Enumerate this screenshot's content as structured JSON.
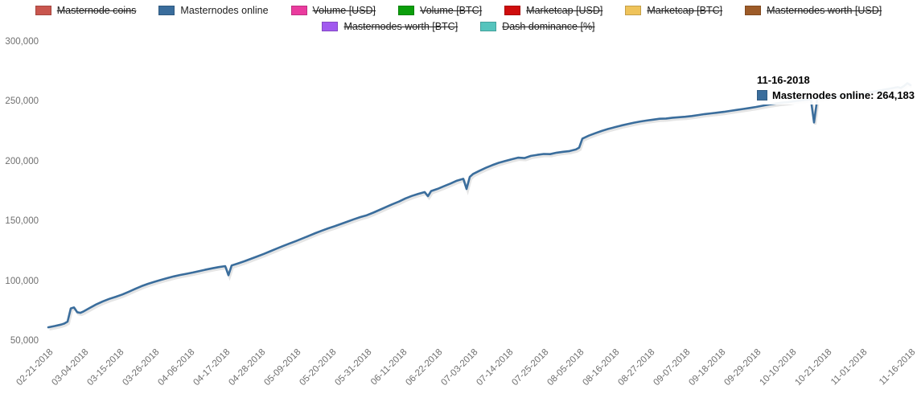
{
  "tooltip": {
    "date": "11-16-2018",
    "series": "Masternodes online",
    "value": "264,183",
    "text": "Masternodes online: 264,183",
    "color": "#3a6d9c"
  },
  "legend": {
    "rows": [
      [
        {
          "label": "Masternode coins",
          "color": "#c9564e",
          "disabled": true
        },
        {
          "label": "Masternodes online",
          "color": "#3a6d9c",
          "disabled": false
        },
        {
          "label": "Volume [USD]",
          "color": "#ea3b9e",
          "disabled": true
        },
        {
          "label": "Volume [BTC]",
          "color": "#0b9e0b",
          "disabled": true
        },
        {
          "label": "Marketcap [USD]",
          "color": "#cf0d0d",
          "disabled": true
        },
        {
          "label": "Marketcap [BTC]",
          "color": "#efc35a",
          "disabled": true
        },
        {
          "label": "Masternodes worth [USD]",
          "color": "#9d5b28",
          "disabled": true
        }
      ],
      [
        {
          "label": "Masternodes worth [BTC]",
          "color": "#a159ef",
          "disabled": true
        },
        {
          "label": "Dash dominance [%]",
          "color": "#55c4bd",
          "disabled": true
        }
      ]
    ]
  },
  "chart_data": {
    "type": "line",
    "title": "",
    "xlabel": "",
    "ylabel": "",
    "grid": false,
    "legend_position": "top-center",
    "ylim": [
      50000,
      300000
    ],
    "y_ticks": [
      {
        "value": 50000,
        "label": "50,000"
      },
      {
        "value": 100000,
        "label": "100,000"
      },
      {
        "value": 150000,
        "label": "150,000"
      },
      {
        "value": 200000,
        "label": "200,000"
      },
      {
        "value": 250000,
        "label": "250,000"
      },
      {
        "value": 300000,
        "label": "300,000"
      }
    ],
    "x_ticks": [
      "02-21-2018",
      "03-04-2018",
      "03-15-2018",
      "03-26-2018",
      "04-06-2018",
      "04-17-2018",
      "04-28-2018",
      "05-09-2018",
      "05-20-2018",
      "05-31-2018",
      "06-11-2018",
      "06-22-2018",
      "07-03-2018",
      "07-14-2018",
      "07-25-2018",
      "08-05-2018",
      "08-16-2018",
      "08-27-2018",
      "09-07-2018",
      "09-18-2018",
      "09-29-2018",
      "10-10-2018",
      "10-21-2018",
      "11-01-2018",
      "11-16-2018"
    ],
    "series": [
      {
        "name": "Masternodes online",
        "color": "#3a6d9c",
        "points": [
          [
            "02-21-2018",
            62000
          ],
          [
            "02-23-2018",
            63100
          ],
          [
            "02-25-2018",
            64300
          ],
          [
            "02-26-2018",
            65200
          ],
          [
            "02-27-2018",
            66800
          ],
          [
            "02-28-2018",
            77800
          ],
          [
            "03-01-2018",
            78600
          ],
          [
            "03-02-2018",
            74600
          ],
          [
            "03-03-2018",
            74100
          ],
          [
            "03-04-2018",
            75300
          ],
          [
            "03-06-2018",
            78300
          ],
          [
            "03-08-2018",
            81300
          ],
          [
            "03-10-2018",
            83700
          ],
          [
            "03-12-2018",
            85800
          ],
          [
            "03-14-2018",
            87500
          ],
          [
            "03-16-2018",
            89400
          ],
          [
            "03-18-2018",
            91700
          ],
          [
            "03-20-2018",
            94100
          ],
          [
            "03-22-2018",
            96400
          ],
          [
            "03-24-2018",
            98300
          ],
          [
            "03-26-2018",
            100000
          ],
          [
            "03-28-2018",
            101600
          ],
          [
            "03-30-2018",
            103100
          ],
          [
            "04-01-2018",
            104500
          ],
          [
            "04-03-2018",
            105700
          ],
          [
            "04-05-2018",
            106700
          ],
          [
            "04-07-2018",
            107800
          ],
          [
            "04-09-2018",
            109000
          ],
          [
            "04-11-2018",
            110200
          ],
          [
            "04-13-2018",
            111300
          ],
          [
            "04-15-2018",
            112300
          ],
          [
            "04-17-2018",
            113100
          ],
          [
            "04-18-2018",
            105500
          ],
          [
            "04-19-2018",
            113600
          ],
          [
            "04-21-2018",
            115400
          ],
          [
            "04-23-2018",
            117200
          ],
          [
            "04-25-2018",
            119200
          ],
          [
            "04-27-2018",
            121200
          ],
          [
            "04-29-2018",
            123300
          ],
          [
            "05-01-2018",
            125500
          ],
          [
            "05-03-2018",
            127700
          ],
          [
            "05-05-2018",
            129900
          ],
          [
            "05-07-2018",
            132000
          ],
          [
            "05-09-2018",
            134000
          ],
          [
            "05-11-2018",
            136200
          ],
          [
            "05-13-2018",
            138400
          ],
          [
            "05-15-2018",
            140600
          ],
          [
            "05-17-2018",
            142700
          ],
          [
            "05-19-2018",
            144600
          ],
          [
            "05-21-2018",
            146400
          ],
          [
            "05-23-2018",
            148300
          ],
          [
            "05-25-2018",
            150300
          ],
          [
            "05-27-2018",
            152200
          ],
          [
            "05-29-2018",
            154000
          ],
          [
            "05-31-2018",
            155600
          ],
          [
            "06-02-2018",
            157700
          ],
          [
            "06-04-2018",
            160100
          ],
          [
            "06-06-2018",
            162500
          ],
          [
            "06-08-2018",
            164800
          ],
          [
            "06-10-2018",
            167000
          ],
          [
            "06-12-2018",
            169600
          ],
          [
            "06-14-2018",
            171700
          ],
          [
            "06-16-2018",
            173400
          ],
          [
            "06-18-2018",
            174900
          ],
          [
            "06-19-2018",
            171500
          ],
          [
            "06-20-2018",
            175800
          ],
          [
            "06-22-2018",
            177600
          ],
          [
            "06-24-2018",
            179800
          ],
          [
            "06-26-2018",
            182000
          ],
          [
            "06-28-2018",
            184400
          ],
          [
            "06-30-2018",
            186000
          ],
          [
            "07-01-2018",
            177500
          ],
          [
            "07-02-2018",
            187500
          ],
          [
            "07-03-2018",
            190000
          ],
          [
            "07-05-2018",
            192700
          ],
          [
            "07-07-2018",
            195200
          ],
          [
            "07-09-2018",
            197400
          ],
          [
            "07-11-2018",
            199300
          ],
          [
            "07-13-2018",
            200900
          ],
          [
            "07-15-2018",
            202300
          ],
          [
            "07-17-2018",
            203600
          ],
          [
            "07-19-2018",
            203300
          ],
          [
            "07-21-2018",
            205100
          ],
          [
            "07-23-2018",
            206000
          ],
          [
            "07-25-2018",
            206700
          ],
          [
            "07-27-2018",
            206600
          ],
          [
            "07-29-2018",
            207800
          ],
          [
            "07-31-2018",
            208500
          ],
          [
            "08-02-2018",
            209100
          ],
          [
            "08-04-2018",
            210500
          ],
          [
            "08-05-2018",
            212000
          ],
          [
            "08-06-2018",
            219500
          ],
          [
            "08-08-2018",
            222000
          ],
          [
            "08-10-2018",
            224000
          ],
          [
            "08-12-2018",
            225900
          ],
          [
            "08-14-2018",
            227600
          ],
          [
            "08-16-2018",
            229000
          ],
          [
            "08-18-2018",
            230400
          ],
          [
            "08-20-2018",
            231600
          ],
          [
            "08-22-2018",
            232800
          ],
          [
            "08-24-2018",
            233800
          ],
          [
            "08-26-2018",
            234600
          ],
          [
            "08-28-2018",
            235400
          ],
          [
            "08-30-2018",
            236100
          ],
          [
            "09-01-2018",
            236300
          ],
          [
            "09-03-2018",
            237000
          ],
          [
            "09-05-2018",
            237400
          ],
          [
            "09-07-2018",
            237800
          ],
          [
            "09-09-2018",
            238400
          ],
          [
            "09-11-2018",
            239200
          ],
          [
            "09-13-2018",
            240000
          ],
          [
            "09-15-2018",
            240600
          ],
          [
            "09-17-2018",
            241200
          ],
          [
            "09-19-2018",
            241900
          ],
          [
            "09-21-2018",
            242700
          ],
          [
            "09-23-2018",
            243500
          ],
          [
            "09-25-2018",
            244300
          ],
          [
            "09-27-2018",
            245100
          ],
          [
            "09-29-2018",
            246000
          ],
          [
            "10-01-2018",
            247000
          ],
          [
            "10-03-2018",
            248000
          ],
          [
            "10-05-2018",
            248800
          ],
          [
            "10-07-2018",
            249500
          ],
          [
            "10-09-2018",
            250100
          ],
          [
            "10-11-2018",
            250800
          ],
          [
            "10-13-2018",
            251500
          ],
          [
            "10-15-2018",
            252100
          ],
          [
            "10-16-2018",
            252400
          ],
          [
            "10-17-2018",
            233000
          ],
          [
            "10-18-2018",
            252800
          ],
          [
            "10-20-2018",
            253400
          ],
          [
            "10-22-2018",
            254000
          ],
          [
            "10-24-2018",
            254600
          ],
          [
            "10-26-2018",
            255200
          ],
          [
            "10-28-2018",
            255800
          ],
          [
            "10-30-2018",
            256400
          ],
          [
            "11-01-2018",
            257000
          ],
          [
            "11-03-2018",
            258000
          ],
          [
            "11-05-2018",
            259000
          ],
          [
            "11-07-2018",
            260000
          ],
          [
            "11-09-2018",
            261000
          ],
          [
            "11-11-2018",
            262000
          ],
          [
            "11-12-2018",
            262500
          ],
          [
            "11-13-2018",
            261800
          ],
          [
            "11-14-2018",
            263500
          ],
          [
            "11-15-2018",
            265800
          ],
          [
            "11-16-2018",
            264183
          ]
        ]
      }
    ]
  }
}
